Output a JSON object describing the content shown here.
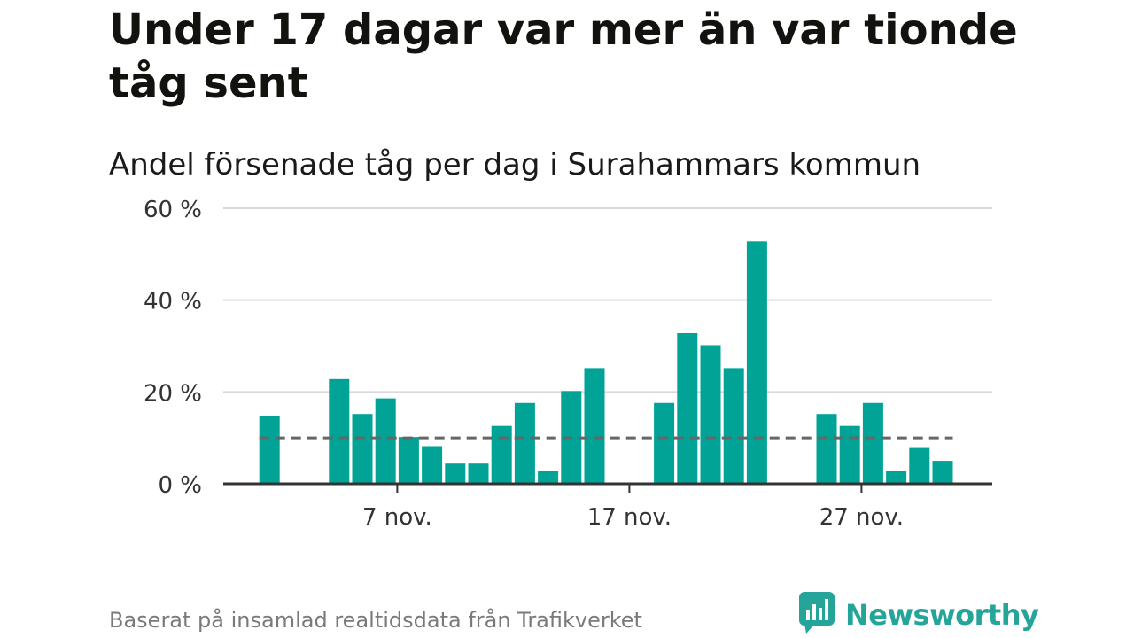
{
  "header": {
    "title": "Under 17 dagar var mer än var tionde tåg sent",
    "subtitle": "Andel försenade tåg per dag i Surahammars kommun"
  },
  "footer": {
    "source": "Baserat på insamlad realtidsdata från Trafikverket",
    "brand": "Newsworthy",
    "brand_icon": "newsworthy-logo-icon"
  },
  "colors": {
    "bar": "#00a396",
    "reference_line": "#666666",
    "grid": "#d9d9d9",
    "axis": "#333333",
    "brand": "#25a59a"
  },
  "chart_data": {
    "type": "bar",
    "title": "Under 17 dagar var mer än var tionde tåg sent",
    "subtitle": "Andel försenade tåg per dag i Surahammars kommun",
    "xlabel": "",
    "ylabel": "",
    "unit": "%",
    "ylim": [
      0,
      60
    ],
    "yticks": [
      0,
      20,
      40,
      60
    ],
    "ytick_labels": [
      "0 %",
      "20 %",
      "40 %",
      "60 %"
    ],
    "x_start_day": 1,
    "x_range": [
      0,
      34
    ],
    "xticks": [
      {
        "day": 7,
        "label": "7 nov."
      },
      {
        "day": 17,
        "label": "17 nov."
      },
      {
        "day": 27,
        "label": "27 nov."
      }
    ],
    "categories": [
      "1 nov.",
      "2 nov.",
      "3 nov.",
      "4 nov.",
      "5 nov.",
      "6 nov.",
      "7 nov.",
      "8 nov.",
      "9 nov.",
      "10 nov.",
      "11 nov.",
      "12 nov.",
      "13 nov.",
      "14 nov.",
      "15 nov.",
      "16 nov.",
      "17 nov.",
      "18 nov.",
      "19 nov.",
      "20 nov.",
      "21 nov.",
      "22 nov.",
      "23 nov.",
      "24 nov.",
      "25 nov.",
      "26 nov.",
      "27 nov.",
      "28 nov.",
      "29 nov.",
      "30 nov."
    ],
    "values": [
      14.8,
      null,
      null,
      22.8,
      15.2,
      18.6,
      10.2,
      8.2,
      4.4,
      4.4,
      12.6,
      17.6,
      2.8,
      20.2,
      25.2,
      null,
      null,
      17.6,
      32.8,
      30.2,
      25.2,
      52.8,
      null,
      null,
      15.2,
      12.6,
      17.6,
      2.8,
      7.8,
      5.0
    ],
    "reference_line": {
      "value": 10,
      "style": "dashed",
      "x_from_day": 1,
      "x_to_day": 30
    },
    "grid": true
  }
}
